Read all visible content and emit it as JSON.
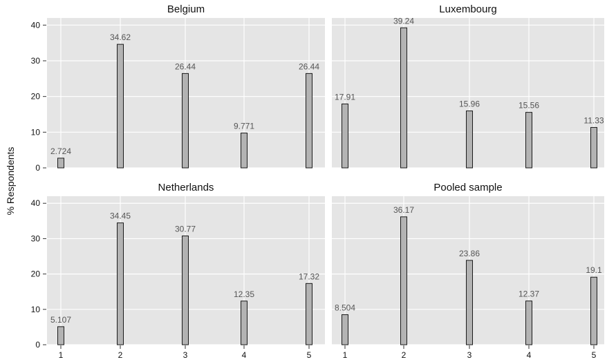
{
  "chart_data": {
    "type": "bar",
    "ylabel": "% Respondents",
    "categories": [
      "1",
      "2",
      "3",
      "4",
      "5"
    ],
    "ylim": [
      0,
      42
    ],
    "yticks": [
      "0",
      "10",
      "20",
      "30",
      "40"
    ],
    "grid": true,
    "panels": [
      {
        "title": "Belgium",
        "values": [
          2.724,
          34.62,
          26.44,
          9.771,
          26.44
        ],
        "labels": [
          "2.724",
          "34.62",
          "26.44",
          "9.771",
          "26.44"
        ]
      },
      {
        "title": "Luxembourg",
        "values": [
          17.91,
          39.24,
          15.96,
          15.56,
          11.33
        ],
        "labels": [
          "17.91",
          "39.24",
          "15.96",
          "15.56",
          "11.33"
        ]
      },
      {
        "title": "Netherlands",
        "values": [
          5.107,
          34.45,
          30.77,
          12.35,
          17.32
        ],
        "labels": [
          "5.107",
          "34.45",
          "30.77",
          "12.35",
          "17.32"
        ]
      },
      {
        "title": "Pooled sample",
        "values": [
          8.504,
          36.17,
          23.86,
          12.37,
          19.1
        ],
        "labels": [
          "8.504",
          "36.17",
          "23.86",
          "12.37",
          "19.1"
        ]
      }
    ]
  }
}
